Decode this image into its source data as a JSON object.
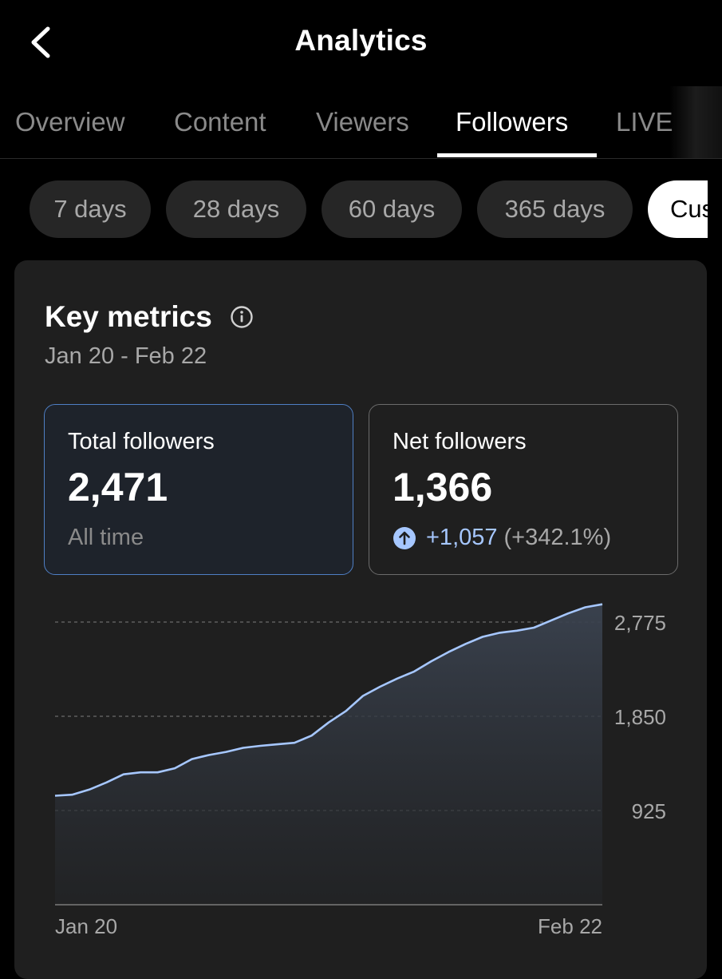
{
  "header": {
    "title": "Analytics",
    "back_icon": "chevron-left-icon"
  },
  "tabs": [
    {
      "label": "Overview",
      "active": false
    },
    {
      "label": "Content",
      "active": false
    },
    {
      "label": "Viewers",
      "active": false
    },
    {
      "label": "Followers",
      "active": true
    },
    {
      "label": "LIVE",
      "active": false
    }
  ],
  "date_ranges": [
    {
      "label": "7 days",
      "active": false
    },
    {
      "label": "28 days",
      "active": false
    },
    {
      "label": "60 days",
      "active": false
    },
    {
      "label": "365 days",
      "active": false
    },
    {
      "label": "Cus",
      "active": true
    }
  ],
  "key_metrics": {
    "title": "Key metrics",
    "info_icon": "info-icon",
    "date_range": "Jan 20 - Feb 22",
    "total_followers": {
      "label": "Total followers",
      "value": "2,471",
      "sub": "All time"
    },
    "net_followers": {
      "label": "Net followers",
      "value": "1,366",
      "change": "+1,057",
      "change_pct": "(+342.1%)",
      "change_icon": "arrow-up-circle-icon"
    }
  },
  "colors": {
    "accent": "#a6c7ff",
    "selected_border": "#4f7fc4",
    "line": "#a6c7ff",
    "card_bg": "#1f1f1f"
  },
  "chart_data": {
    "type": "area",
    "x_start_label": "Jan 20",
    "x_end_label": "Feb 22",
    "y_ticks": [
      "2,775",
      "1,850",
      "925"
    ],
    "y_tick_values": [
      2775,
      1850,
      925
    ],
    "ylim": [
      0,
      2775
    ],
    "grid": true,
    "values": [
      1070,
      1080,
      1130,
      1200,
      1280,
      1300,
      1300,
      1340,
      1430,
      1470,
      1500,
      1540,
      1560,
      1575,
      1590,
      1660,
      1790,
      1900,
      2050,
      2140,
      2220,
      2290,
      2390,
      2480,
      2560,
      2630,
      2670,
      2690,
      2720,
      2790,
      2860,
      2920,
      2950
    ]
  }
}
